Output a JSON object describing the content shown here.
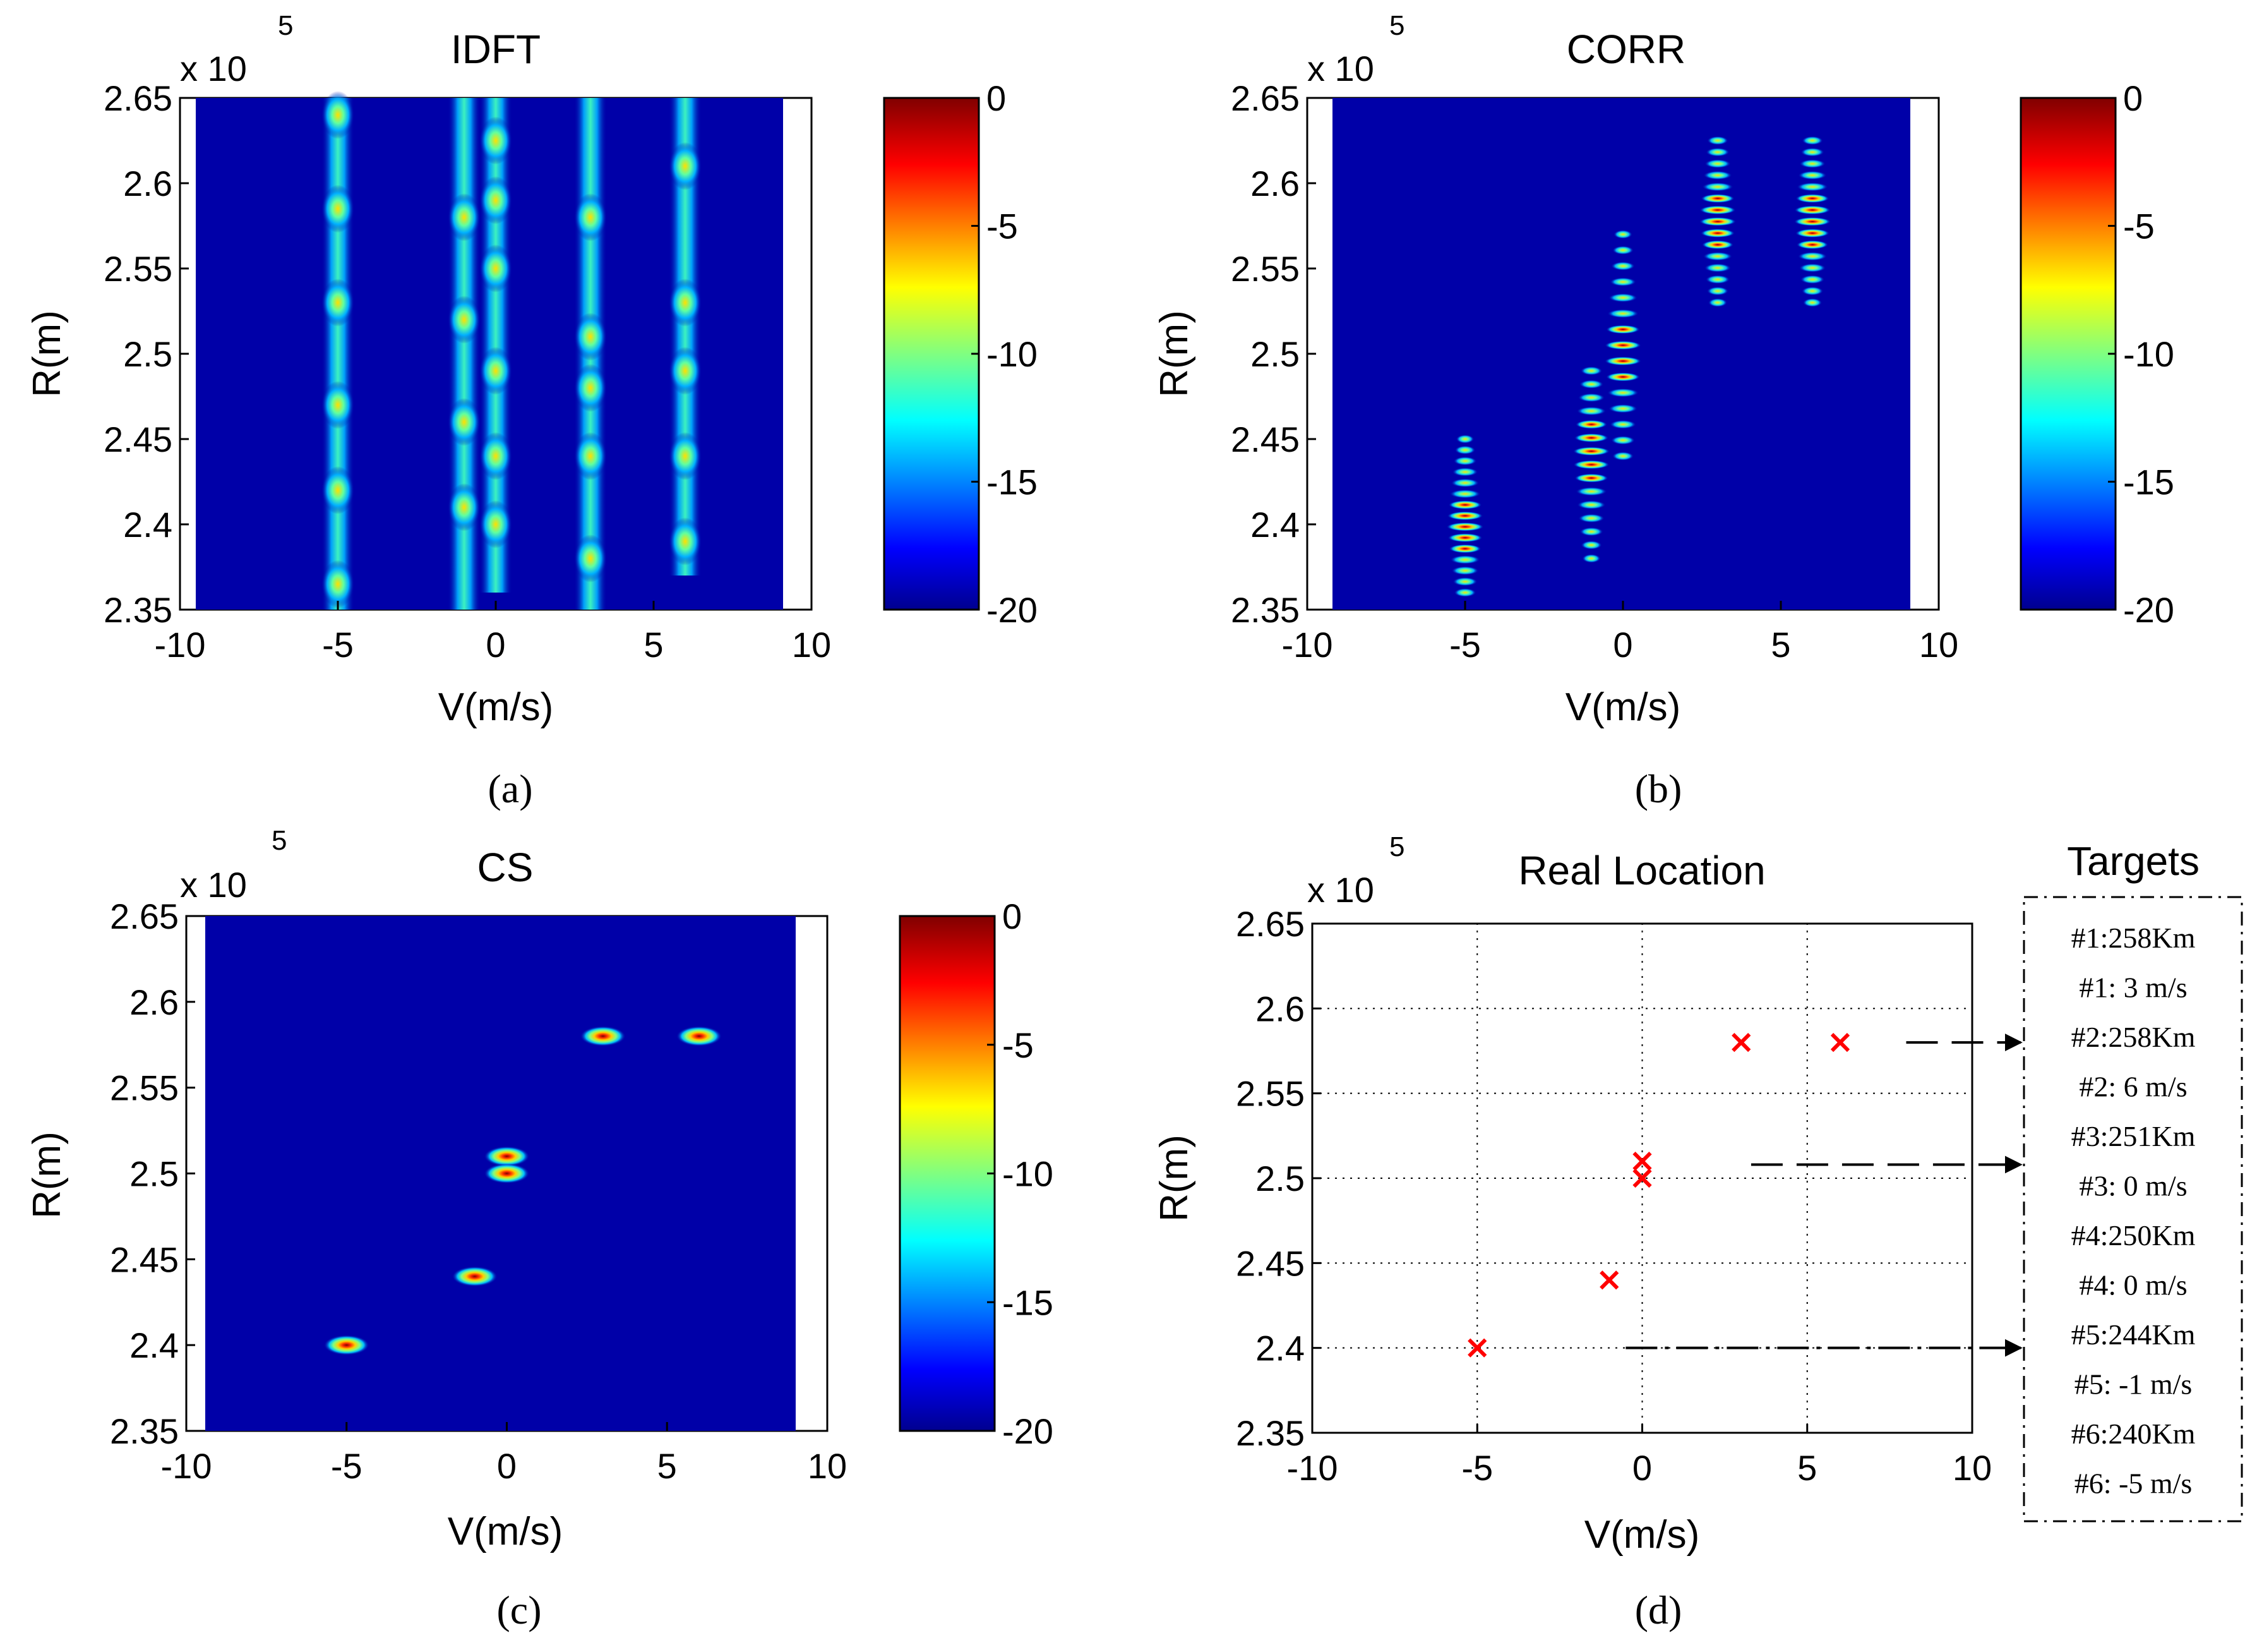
{
  "chart_data": [
    {
      "id": "a",
      "type": "heatmap",
      "title": "IDFT",
      "caption": "(a)",
      "xlabel": "V(m/s)",
      "ylabel": "R(m)",
      "y_multiplier": "x 10",
      "y_multiplier_exp": "5",
      "xlim": [
        -10,
        10
      ],
      "ylim": [
        2.35,
        2.65
      ],
      "xticks": [
        "-10",
        "-5",
        "0",
        "5",
        "10"
      ],
      "yticks": [
        "2.35",
        "2.4",
        "2.45",
        "2.5",
        "2.55",
        "2.6",
        "2.65"
      ],
      "colorbar": {
        "range": [
          -20,
          0
        ],
        "ticks": [
          "0",
          "-5",
          "-10",
          "-15",
          "-20"
        ]
      },
      "streaks": [
        {
          "v": -5,
          "r_from": 2.35,
          "r_to": 2.65,
          "peaks": [
            2.365,
            2.42,
            2.47,
            2.53,
            2.585,
            2.64
          ]
        },
        {
          "v": -1,
          "r_from": 2.35,
          "r_to": 2.65,
          "peaks": [
            2.41,
            2.46,
            2.52,
            2.58
          ]
        },
        {
          "v": 0,
          "r_from": 2.36,
          "r_to": 2.65,
          "peaks": [
            2.4,
            2.44,
            2.49,
            2.55,
            2.59,
            2.625
          ]
        },
        {
          "v": 3,
          "r_from": 2.35,
          "r_to": 2.65,
          "peaks": [
            2.38,
            2.44,
            2.48,
            2.51,
            2.58
          ]
        },
        {
          "v": 6,
          "r_from": 2.37,
          "r_to": 2.65,
          "peaks": [
            2.39,
            2.44,
            2.49,
            2.53,
            2.61
          ]
        }
      ]
    },
    {
      "id": "b",
      "type": "heatmap",
      "title": "CORR",
      "caption": "(b)",
      "xlabel": "V(m/s)",
      "ylabel": "R(m)",
      "y_multiplier": "x 10",
      "y_multiplier_exp": "5",
      "xlim": [
        -10,
        10
      ],
      "ylim": [
        2.35,
        2.65
      ],
      "xticks": [
        "-10",
        "-5",
        "0",
        "5",
        "10"
      ],
      "yticks": [
        "2.35",
        "2.4",
        "2.45",
        "2.5",
        "2.55",
        "2.6",
        "2.65"
      ],
      "colorbar": {
        "range": [
          -20,
          0
        ],
        "ticks": [
          "0",
          "-5",
          "-10",
          "-15",
          "-20"
        ]
      },
      "clusters": [
        {
          "v": -5,
          "r_center": 2.4,
          "r_from": 2.36,
          "r_to": 2.45
        },
        {
          "v": -1,
          "r_center": 2.44,
          "r_from": 2.38,
          "r_to": 2.49
        },
        {
          "v": 0,
          "r_center": 2.5,
          "r_from": 2.44,
          "r_to": 2.57
        },
        {
          "v": 3,
          "r_center": 2.58,
          "r_from": 2.53,
          "r_to": 2.625
        },
        {
          "v": 6,
          "r_center": 2.58,
          "r_from": 2.53,
          "r_to": 2.625
        }
      ]
    },
    {
      "id": "c",
      "type": "heatmap",
      "title": "CS",
      "caption": "(c)",
      "xlabel": "V(m/s)",
      "ylabel": "R(m)",
      "y_multiplier": "x 10",
      "y_multiplier_exp": "5",
      "xlim": [
        -10,
        10
      ],
      "ylim": [
        2.35,
        2.65
      ],
      "xticks": [
        "-10",
        "-5",
        "0",
        "5",
        "10"
      ],
      "yticks": [
        "2.35",
        "2.4",
        "2.45",
        "2.5",
        "2.55",
        "2.6",
        "2.65"
      ],
      "colorbar": {
        "range": [
          -20,
          0
        ],
        "ticks": [
          "0",
          "-5",
          "-10",
          "-15",
          "-20"
        ]
      },
      "peaks": [
        {
          "v": 3,
          "r": 2.58
        },
        {
          "v": 6,
          "r": 2.58
        },
        {
          "v": 0,
          "r": 2.51
        },
        {
          "v": 0,
          "r": 2.5
        },
        {
          "v": -1,
          "r": 2.44
        },
        {
          "v": -5,
          "r": 2.4
        }
      ]
    },
    {
      "id": "d",
      "type": "scatter",
      "title": "Real Location",
      "caption": "(d)",
      "xlabel": "V(m/s)",
      "ylabel": "R(m)",
      "y_multiplier": "x 10",
      "y_multiplier_exp": "5",
      "xlim": [
        -10,
        10
      ],
      "ylim": [
        2.35,
        2.65
      ],
      "xticks": [
        "-10",
        "-5",
        "0",
        "5",
        "10"
      ],
      "yticks": [
        "2.35",
        "2.4",
        "2.45",
        "2.5",
        "2.55",
        "2.6",
        "2.65"
      ],
      "grid": true,
      "marker": "x",
      "marker_color": "#ff0000",
      "points": [
        {
          "v": 3,
          "r": 2.58
        },
        {
          "v": 6,
          "r": 2.58
        },
        {
          "v": 0,
          "r": 2.51
        },
        {
          "v": 0,
          "r": 2.5
        },
        {
          "v": -1,
          "r": 2.44
        },
        {
          "v": -5,
          "r": 2.4
        }
      ],
      "arrows": [
        {
          "r": 2.58,
          "v_from": 8,
          "style": "dashed"
        },
        {
          "r": 2.508,
          "v_from": 3.3,
          "style": "dashed"
        },
        {
          "r": 2.4,
          "v_from": -0.5,
          "style": "dash-dot"
        }
      ],
      "legend": {
        "title": "Targets",
        "entries": [
          "#1:258Km",
          "#1: 3 m/s",
          "#2:258Km",
          "#2: 6 m/s",
          "#3:251Km",
          "#3: 0 m/s",
          "#4:250Km",
          "#4: 0 m/s",
          "#5:244Km",
          "#5: -1 m/s",
          "#6:240Km",
          "#6: -5 m/s"
        ]
      }
    }
  ]
}
